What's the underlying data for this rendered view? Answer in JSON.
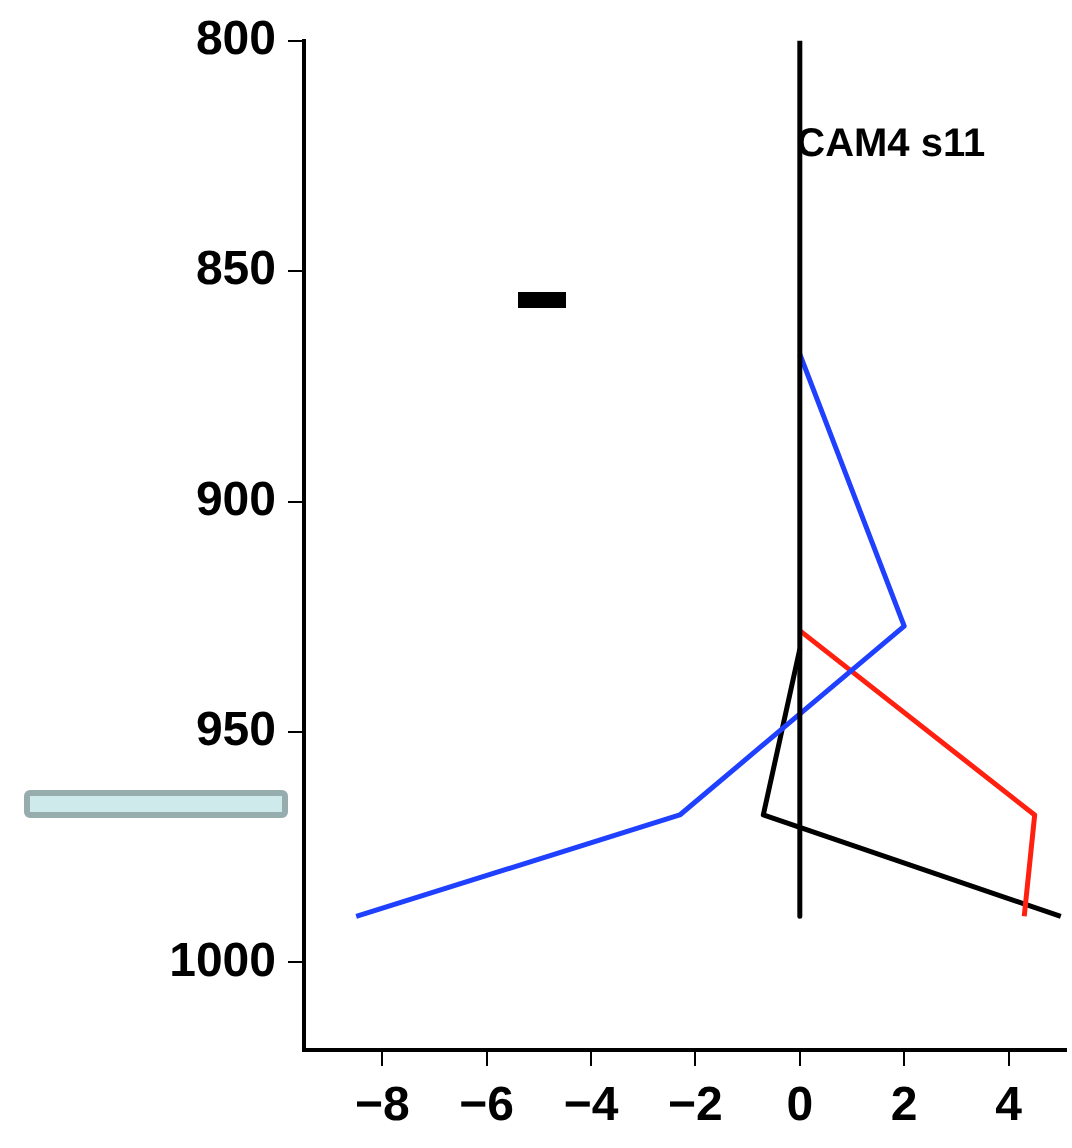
{
  "chart_data": {
    "type": "line",
    "annotations": [
      "CAM4 s11"
    ],
    "xlim": [
      -9.5,
      5.1
    ],
    "ylim": [
      1019,
      800
    ],
    "xticks": [
      -8,
      -6,
      -4,
      -2,
      0,
      2,
      4
    ],
    "yticks": [
      800,
      850,
      900,
      950,
      1000
    ],
    "grid": false,
    "legend": false,
    "marker": "none",
    "line_style": "solid",
    "series": [
      {
        "color": "#000000",
        "x": [
          0,
          0
        ],
        "values": [
          800,
          990
        ]
      },
      {
        "color": "#2040ff",
        "x": [
          0,
          2.0,
          -2.3,
          -8.5
        ],
        "values": [
          868,
          927,
          968,
          990
        ]
      },
      {
        "color": "#ff2010",
        "x": [
          0,
          4.5,
          4.3
        ],
        "values": [
          928,
          968,
          990
        ]
      },
      {
        "color": "#000000",
        "x": [
          0,
          -0.7,
          5.0
        ],
        "values": [
          932,
          968,
          990
        ]
      }
    ]
  }
}
